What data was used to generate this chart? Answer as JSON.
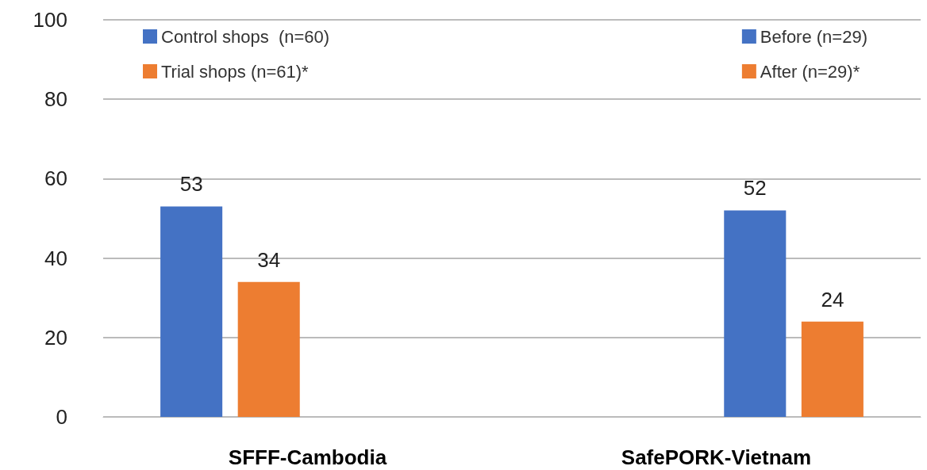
{
  "chart_data": {
    "type": "bar",
    "categories": [
      "SFFF-Cambodia",
      "SafePORK-Vietnam"
    ],
    "series": [
      {
        "name": "Control shops  (n=60)",
        "color": "#4472c4",
        "values": [
          53,
          null
        ]
      },
      {
        "name": "Trial shops (n=61)*",
        "color": "#ed7d31",
        "values": [
          34,
          null
        ]
      },
      {
        "name": "Before (n=29)",
        "color": "#4472c4",
        "values": [
          null,
          52
        ]
      },
      {
        "name": "After (n=29)*",
        "color": "#ed7d31",
        "values": [
          null,
          24
        ]
      }
    ],
    "ylim": [
      0,
      100
    ],
    "yticks": [
      0,
      20,
      40,
      60,
      80,
      100
    ],
    "grid": "y",
    "legend": "top",
    "data_labels": true
  }
}
